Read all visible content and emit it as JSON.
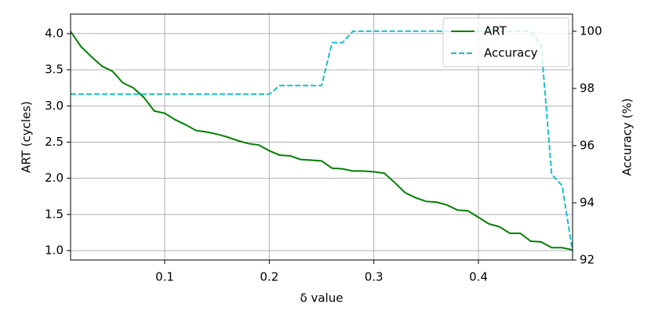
{
  "chart_data": {
    "type": "line",
    "xlabel": "δ value",
    "ylabel": "ART (cycles)",
    "y2label": "Accuracy (%)",
    "x": [
      0.01,
      0.02,
      0.03,
      0.04,
      0.05,
      0.06,
      0.07,
      0.08,
      0.09,
      0.1,
      0.11,
      0.12,
      0.13,
      0.14,
      0.15,
      0.16,
      0.17,
      0.18,
      0.19,
      0.2,
      0.21,
      0.22,
      0.23,
      0.24,
      0.25,
      0.26,
      0.27,
      0.28,
      0.29,
      0.3,
      0.31,
      0.32,
      0.33,
      0.34,
      0.35,
      0.36,
      0.37,
      0.38,
      0.39,
      0.4,
      0.41,
      0.42,
      0.43,
      0.44,
      0.45,
      0.46,
      0.47,
      0.48,
      0.49
    ],
    "series": [
      {
        "name": "ART",
        "color": "#008000",
        "dash": false,
        "values": [
          4.03,
          3.82,
          3.68,
          3.55,
          3.48,
          3.32,
          3.25,
          3.12,
          2.93,
          2.9,
          2.81,
          2.74,
          2.66,
          2.64,
          2.61,
          2.57,
          2.52,
          2.48,
          2.46,
          2.38,
          2.32,
          2.31,
          2.26,
          2.25,
          2.24,
          2.14,
          2.13,
          2.1,
          2.1,
          2.09,
          2.07,
          1.94,
          1.8,
          1.73,
          1.68,
          1.67,
          1.63,
          1.56,
          1.55,
          1.46,
          1.37,
          1.33,
          1.24,
          1.24,
          1.13,
          1.12,
          1.04,
          1.04,
          1.01
        ]
      },
      {
        "name": "Accuracy",
        "color": "#17becf",
        "dash": true,
        "axis": "y2",
        "values": [
          97.8,
          97.8,
          97.8,
          97.8,
          97.8,
          97.8,
          97.8,
          97.8,
          97.8,
          97.8,
          97.8,
          97.8,
          97.8,
          97.8,
          97.8,
          97.8,
          97.8,
          97.8,
          97.8,
          97.8,
          98.1,
          98.1,
          98.1,
          98.1,
          98.1,
          99.6,
          99.6,
          100,
          100,
          100,
          100,
          100,
          100,
          100,
          100,
          100,
          100,
          100,
          100,
          100,
          100,
          100,
          100,
          100,
          100,
          99.5,
          95.0,
          94.6,
          92.3
        ]
      }
    ],
    "xlim": [
      0.01,
      0.49
    ],
    "xticks": [
      0.1,
      0.2,
      0.3,
      0.4
    ],
    "ylim": [
      0.87,
      4.27
    ],
    "yticks": [
      {
        "value": 1,
        "label": "1.0"
      },
      {
        "value": 1.5,
        "label": "1.5"
      },
      {
        "value": 2,
        "label": "2.0"
      },
      {
        "value": 2.5,
        "label": "2.5"
      },
      {
        "value": 3,
        "label": "3.0"
      },
      {
        "value": 3.5,
        "label": "3.5"
      },
      {
        "value": 4,
        "label": "4.0"
      }
    ],
    "y2lim": [
      92,
      100.6
    ],
    "y2ticks": [
      92,
      94,
      96,
      98,
      100
    ],
    "grid": true,
    "legend": "upper right"
  }
}
